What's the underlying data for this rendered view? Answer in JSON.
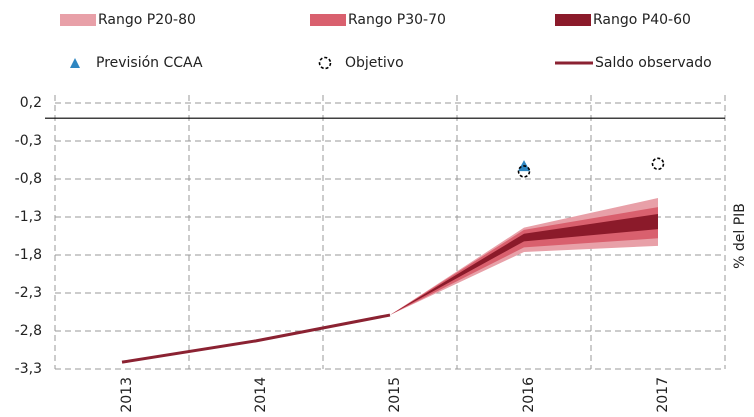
{
  "chart_data": {
    "type": "fan",
    "categories": [
      "2013",
      "2014",
      "2015",
      "2016",
      "2017"
    ],
    "ylabel": "% del PIB",
    "ylim": [
      -3.3,
      0.2
    ],
    "yticks": [
      {
        "value": 0.2,
        "label": "0,2"
      },
      {
        "value": -0.3,
        "label": "-0,3"
      },
      {
        "value": -0.8,
        "label": "-0,8"
      },
      {
        "value": -1.3,
        "label": "-1,3"
      },
      {
        "value": -1.8,
        "label": "-1,8"
      },
      {
        "value": -2.3,
        "label": "-2,3"
      },
      {
        "value": -2.8,
        "label": "-2,8"
      },
      {
        "value": -3.3,
        "label": "-3,3"
      }
    ],
    "grid": true,
    "bands": [
      {
        "name": "Rango P20-80",
        "color": "#e8a0a8",
        "low": [
          null,
          null,
          -2.59,
          -1.76,
          -1.68
        ],
        "high": [
          null,
          null,
          -2.59,
          -1.44,
          -1.05
        ]
      },
      {
        "name": "Rango P30-70",
        "color": "#d9606e",
        "low": [
          null,
          null,
          -2.59,
          -1.7,
          -1.58
        ],
        "high": [
          null,
          null,
          -2.59,
          -1.47,
          -1.17
        ]
      },
      {
        "name": "Rango P40-60",
        "color": "#8b1a2a",
        "low": [
          null,
          null,
          -2.59,
          -1.62,
          -1.46
        ],
        "high": [
          null,
          null,
          -2.59,
          -1.52,
          -1.26
        ]
      }
    ],
    "series": [
      {
        "name": "Previsión CCAA",
        "kind": "triangle",
        "color": "#2e86c1",
        "values": [
          null,
          null,
          null,
          -0.63,
          null
        ]
      },
      {
        "name": "Objetivo",
        "kind": "circle",
        "color": "#000000",
        "values": [
          null,
          null,
          null,
          -0.7,
          -0.6
        ]
      },
      {
        "name": "Saldo observado",
        "kind": "line",
        "color": "#8b2232",
        "values": [
          -3.21,
          -2.93,
          -2.59,
          null,
          null
        ]
      }
    ]
  }
}
